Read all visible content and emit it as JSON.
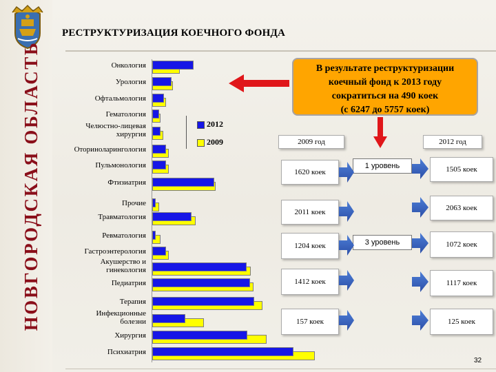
{
  "header": {
    "title": "РЕСТРУКТУРИЗАЦИЯ КОЕЧНОГО ФОНДА",
    "region_vertical": "НОВГОРОДСКАЯ ОБЛАСТЬ"
  },
  "callout": {
    "lines": [
      "В результате реструктуризации",
      "коечный фонд к 2013 году",
      "сократиться на 490 коек",
      "(с 6247 до 5757 коек)"
    ]
  },
  "legend": {
    "y2012": "2012",
    "y2009": "2009"
  },
  "chart_data": {
    "type": "bar",
    "orientation": "horizontal",
    "categories": [
      "Онкология",
      "Урология",
      "Офтальмология",
      "Гематология",
      "Челюстно-лицевая хирургия",
      "Оториноларингология",
      "Пульмонология",
      "Фтизиатрия",
      "Прочие",
      "Травматология",
      "Ревматология",
      "Гастроэнтерология",
      "Акушерство и гинекология",
      "Педиатрия",
      "Терапия",
      "Инфекционные болезни",
      "Хирургия",
      "Психиатрия"
    ],
    "series": [
      {
        "name": "2012",
        "color": "#1616e6",
        "values": [
          60,
          28,
          17,
          10,
          12,
          20,
          20,
          90,
          5,
          57,
          5,
          20,
          137,
          142,
          148,
          48,
          138,
          205
        ]
      },
      {
        "name": "2009",
        "color": "#ffff00",
        "values": [
          40,
          30,
          20,
          12,
          16,
          24,
          24,
          92,
          10,
          63,
          12,
          24,
          143,
          147,
          160,
          75,
          166,
          236
        ]
      }
    ],
    "xlabel": "",
    "ylabel": ""
  },
  "flow": {
    "year_2009": "2009 год",
    "year_2012": "2012 год",
    "level1": "1 уровень",
    "level3": "3 уровень",
    "rows": [
      {
        "left": "1620 коек",
        "right": "1505 коек"
      },
      {
        "left": "2011 коек",
        "right": "2063 коек"
      },
      {
        "left": "1204 коек",
        "right": "1072 коек"
      },
      {
        "left": "1412 коек",
        "right": "1117 коек"
      },
      {
        "left": "157 коек",
        "right": "125 коек"
      }
    ]
  },
  "page_number": "32",
  "colors": {
    "accent_red": "#e0161a",
    "callout": "#ffa500",
    "bar_2012": "#1616e6",
    "bar_2009": "#ffff00",
    "region_text": "#8a0f1a"
  }
}
